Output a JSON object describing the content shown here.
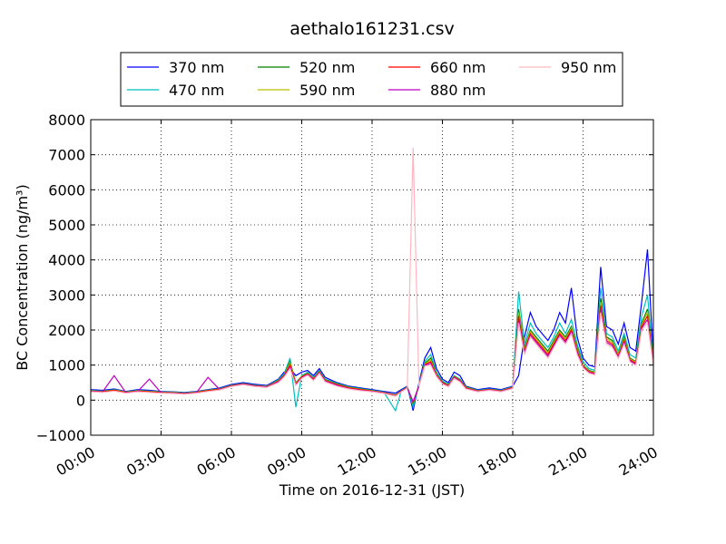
{
  "chart_data": {
    "type": "line",
    "title": "aethalo161231.csv",
    "xlabel": "Time on 2016-12-31 (JST)",
    "ylabel": "BC Concentration (ng/m³)",
    "xlim": [
      0,
      24
    ],
    "ylim": [
      -1000,
      8000
    ],
    "x_ticks": [
      "00:00",
      "03:00",
      "06:00",
      "09:00",
      "12:00",
      "15:00",
      "18:00",
      "21:00",
      "24:00"
    ],
    "y_ticks": [
      "−1000",
      "0",
      "1000",
      "2000",
      "3000",
      "4000",
      "5000",
      "6000",
      "7000",
      "8000"
    ],
    "grid": true,
    "legend_position": "above plot",
    "x_unit": "hours",
    "x": [
      0,
      0.5,
      1,
      1.5,
      2,
      2.5,
      3,
      3.5,
      4,
      4.5,
      5,
      5.5,
      6,
      6.5,
      7,
      7.5,
      8,
      8.25,
      8.5,
      8.75,
      9,
      9.25,
      9.5,
      9.75,
      10,
      10.5,
      11,
      11.5,
      12,
      12.5,
      13,
      13.25,
      13.5,
      13.75,
      14,
      14.25,
      14.5,
      14.75,
      15,
      15.25,
      15.5,
      15.75,
      16,
      16.5,
      17,
      17.5,
      18,
      18.25,
      18.5,
      18.75,
      19,
      19.25,
      19.5,
      19.75,
      20,
      20.25,
      20.5,
      20.75,
      21,
      21.25,
      21.5,
      21.75,
      22,
      22.25,
      22.5,
      22.75,
      23,
      23.25,
      23.5,
      23.75,
      24
    ],
    "series": [
      {
        "name": "370 nm",
        "color": "#0000ff",
        "values": [
          300,
          280,
          320,
          250,
          300,
          280,
          250,
          240,
          220,
          250,
          300,
          350,
          450,
          500,
          450,
          420,
          600,
          800,
          900,
          700,
          800,
          850,
          700,
          900,
          650,
          500,
          400,
          350,
          300,
          250,
          200,
          300,
          400,
          -300,
          500,
          1200,
          1500,
          900,
          600,
          500,
          800,
          700,
          400,
          300,
          350,
          300,
          400,
          700,
          1800,
          2500,
          2100,
          1900,
          1700,
          2000,
          2500,
          2200,
          3200,
          1800,
          1200,
          1000,
          950,
          3800,
          2100,
          2000,
          1600,
          2200,
          1500,
          1400,
          2800,
          4300,
          1200
        ]
      },
      {
        "name": "470 nm",
        "color": "#00bfbf",
        "values": [
          280,
          260,
          300,
          240,
          280,
          260,
          240,
          230,
          210,
          240,
          290,
          330,
          430,
          480,
          430,
          400,
          580,
          750,
          1200,
          -200,
          700,
          800,
          650,
          850,
          600,
          480,
          380,
          330,
          280,
          230,
          -300,
          280,
          380,
          -200,
          450,
          1100,
          1300,
          800,
          550,
          450,
          700,
          600,
          380,
          280,
          320,
          280,
          380,
          3100,
          1600,
          2200,
          1900,
          1700,
          1500,
          1800,
          2200,
          1900,
          2300,
          1600,
          1100,
          900,
          850,
          3200,
          1900,
          1800,
          1400,
          1900,
          1300,
          1200,
          2400,
          3000,
          1100
        ]
      },
      {
        "name": "520 nm",
        "color": "#008000",
        "values": [
          270,
          250,
          290,
          230,
          270,
          250,
          230,
          220,
          200,
          230,
          280,
          320,
          420,
          470,
          420,
          390,
          560,
          720,
          1100,
          500,
          680,
          770,
          620,
          820,
          580,
          460,
          370,
          320,
          270,
          220,
          150,
          270,
          370,
          -100,
          430,
          1050,
          1200,
          750,
          520,
          430,
          680,
          580,
          370,
          270,
          310,
          270,
          370,
          2600,
          1500,
          2000,
          1800,
          1600,
          1400,
          1700,
          2000,
          1800,
          2100,
          1500,
          1000,
          850,
          800,
          2900,
          1800,
          1700,
          1300,
          1800,
          1200,
          1100,
          2200,
          2600,
          1050
        ]
      },
      {
        "name": "590 nm",
        "color": "#bfbf00",
        "values": [
          265,
          245,
          285,
          225,
          265,
          245,
          225,
          215,
          195,
          225,
          275,
          315,
          415,
          465,
          415,
          385,
          550,
          710,
          1050,
          480,
          670,
          760,
          610,
          810,
          570,
          450,
          360,
          310,
          265,
          215,
          140,
          265,
          365,
          -80,
          420,
          1030,
          1150,
          730,
          510,
          420,
          670,
          570,
          360,
          265,
          305,
          265,
          365,
          2500,
          1450,
          1950,
          1750,
          1550,
          1350,
          1650,
          1950,
          1750,
          2050,
          1450,
          980,
          830,
          780,
          2800,
          1750,
          1650,
          1280,
          1750,
          1180,
          1080,
          2150,
          2500,
          1030
        ]
      },
      {
        "name": "660 nm",
        "color": "#ff0000",
        "values": [
          260,
          240,
          280,
          220,
          260,
          240,
          220,
          210,
          190,
          220,
          270,
          310,
          410,
          460,
          410,
          380,
          540,
          700,
          1000,
          460,
          660,
          750,
          600,
          800,
          560,
          440,
          350,
          300,
          260,
          210,
          130,
          260,
          360,
          -60,
          410,
          1010,
          1100,
          710,
          500,
          410,
          660,
          560,
          350,
          260,
          300,
          260,
          360,
          2400,
          1400,
          1900,
          1700,
          1500,
          1300,
          1600,
          1900,
          1700,
          2000,
          1400,
          960,
          810,
          760,
          2700,
          1700,
          1600,
          1250,
          1700,
          1150,
          1050,
          2100,
          2400,
          1010
        ]
      },
      {
        "name": "880 nm",
        "color": "#bf00bf",
        "values": [
          250,
          230,
          700,
          210,
          250,
          600,
          210,
          200,
          180,
          210,
          650,
          300,
          400,
          450,
          400,
          370,
          520,
          680,
          950,
          440,
          640,
          730,
          580,
          780,
          540,
          420,
          330,
          280,
          250,
          200,
          120,
          250,
          350,
          -40,
          400,
          990,
          1050,
          690,
          480,
          390,
          640,
          540,
          330,
          250,
          290,
          250,
          340,
          2300,
          1350,
          1850,
          1650,
          1450,
          1250,
          1550,
          1850,
          1650,
          1950,
          1350,
          940,
          790,
          740,
          2600,
          1650,
          1550,
          1220,
          1650,
          1120,
          1020,
          2050,
          2300,
          990
        ]
      },
      {
        "name": "950 nm",
        "color": "#ffb6c1",
        "values": [
          240,
          220,
          260,
          200,
          240,
          220,
          200,
          190,
          170,
          200,
          250,
          290,
          390,
          440,
          390,
          360,
          500,
          660,
          900,
          420,
          620,
          710,
          560,
          760,
          520,
          400,
          320,
          270,
          240,
          190,
          110,
          240,
          340,
          7200,
          390,
          970,
          1000,
          670,
          460,
          380,
          620,
          520,
          320,
          240,
          280,
          240,
          330,
          2200,
          1300,
          1800,
          1600,
          1400,
          1200,
          1500,
          1800,
          1600,
          1900,
          1300,
          920,
          770,
          720,
          2500,
          1600,
          1500,
          1190,
          1600,
          1090,
          990,
          2000,
          2200,
          970
        ]
      }
    ]
  }
}
